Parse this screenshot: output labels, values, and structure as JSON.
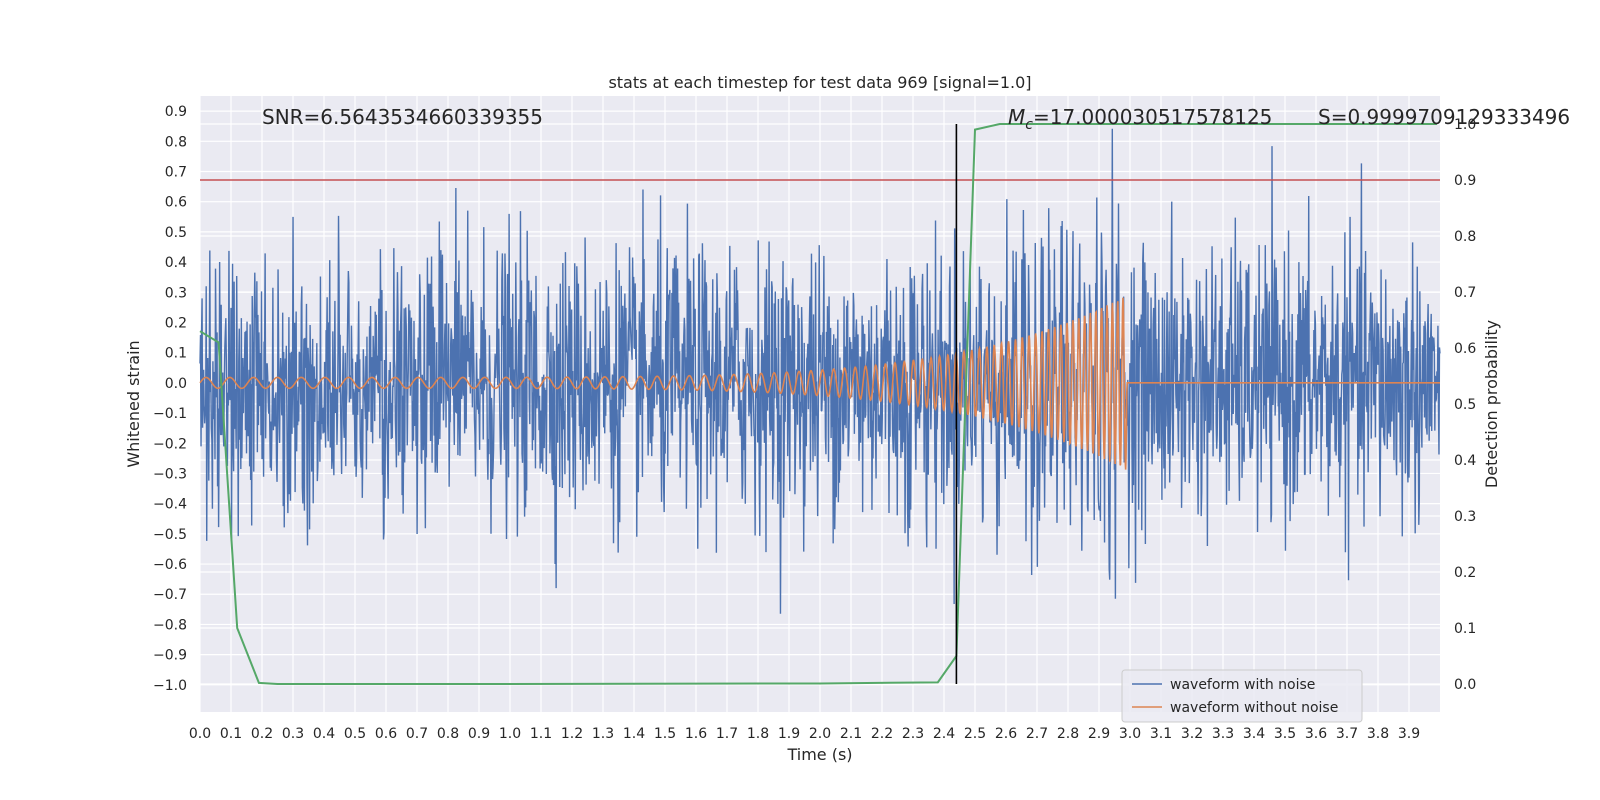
{
  "chart_data": {
    "type": "line",
    "title": "stats at each timestep for test data 969 [signal=1.0]",
    "xlabel": "Time (s)",
    "ylabel_left": "Whitened strain",
    "ylabel_right": "Detection probability",
    "xlim": [
      0.0,
      4.0
    ],
    "ylim_left": [
      -1.09,
      0.95
    ],
    "ylim_right": [
      -0.05,
      1.05
    ],
    "x_ticks": [
      "0.0",
      "0.1",
      "0.2",
      "0.3",
      "0.4",
      "0.5",
      "0.6",
      "0.7",
      "0.8",
      "0.9",
      "1.0",
      "1.1",
      "1.2",
      "1.3",
      "1.4",
      "1.5",
      "1.6",
      "1.7",
      "1.8",
      "1.9",
      "2.0",
      "2.1",
      "2.2",
      "2.3",
      "2.4",
      "2.5",
      "2.6",
      "2.7",
      "2.8",
      "2.9",
      "3.0",
      "3.1",
      "3.2",
      "3.3",
      "3.4",
      "3.5",
      "3.6",
      "3.7",
      "3.8",
      "3.9"
    ],
    "y_ticks_left": [
      "0.9",
      "0.8",
      "0.7",
      "0.6",
      "0.5",
      "0.4",
      "0.3",
      "0.2",
      "0.1",
      "0.0",
      "−0.1",
      "−0.2",
      "−0.3",
      "−0.4",
      "−0.5",
      "−0.6",
      "−0.7",
      "−0.8",
      "−0.9",
      "−1.0"
    ],
    "y_ticks_right": [
      "1.0",
      "0.9",
      "0.8",
      "0.7",
      "0.6",
      "0.5",
      "0.4",
      "0.3",
      "0.2",
      "0.1",
      "0.0"
    ],
    "annotations": {
      "snr": "SNR=6.5643534660339355",
      "mc_symbol": "M",
      "mc_sub": "c",
      "mc_value": "=17.000030517578125",
      "s": "S=0.9999709129333496"
    },
    "legend": [
      "waveform with noise",
      "waveform without noise"
    ],
    "threshold": {
      "axis": "right",
      "value": 0.9,
      "color": "#c44e52"
    },
    "event_time": 2.44,
    "noise_series": {
      "name": "waveform with noise",
      "color": "#4c72b0",
      "amplitude_rms": 0.22,
      "max_abs": 0.9
    },
    "clean_series": {
      "name": "waveform without noise",
      "color": "#dd8452",
      "t_start": 0.0,
      "t_merger": 2.99,
      "freq_start": 13,
      "freq_end": 60,
      "amp_start": 0.018,
      "amp_end": 0.29
    },
    "probability_series": {
      "name": "Detection probability",
      "color": "#55a868",
      "x": [
        0.0,
        0.06,
        0.12,
        0.19,
        0.25,
        1.0,
        2.0,
        2.38,
        2.44,
        2.5,
        2.58,
        3.0,
        3.5,
        3.99
      ],
      "y": [
        0.63,
        0.61,
        0.1,
        0.002,
        0.0,
        0.0,
        0.001,
        0.003,
        0.05,
        0.99,
        1.0,
        1.0,
        1.0,
        1.0
      ]
    }
  }
}
